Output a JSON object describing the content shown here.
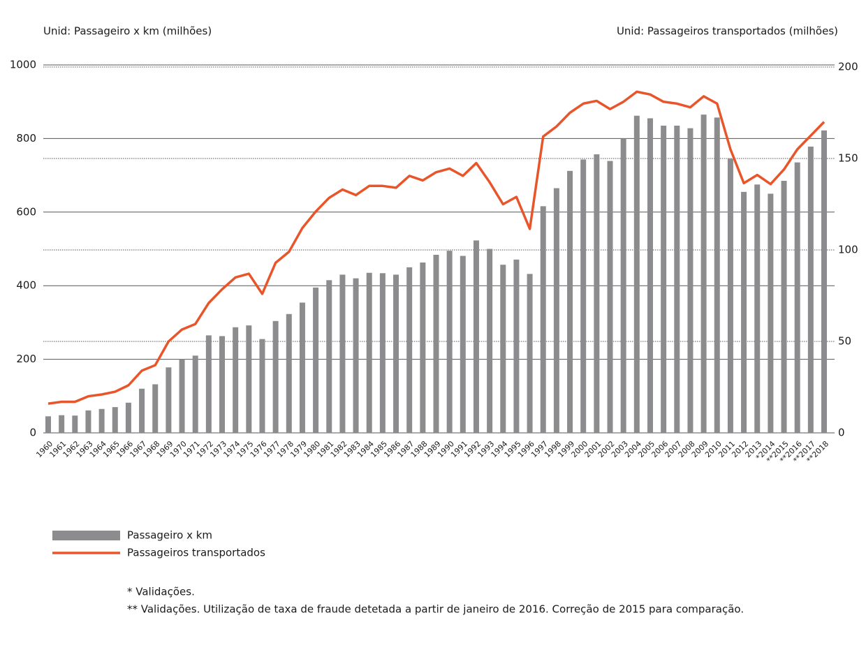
{
  "chart_data": {
    "type": "bar_line",
    "y_label": "Unid:  Passageiro x km (milhões)",
    "y2_label": "Unid: Passageiros transportados (milhões)",
    "categories": [
      "1960",
      "1961",
      "1962",
      "1963",
      "1964",
      "1965",
      "1966",
      "1967",
      "1968",
      "1969",
      "1970",
      "1971",
      "1972",
      "1973",
      "1974",
      "1975",
      "1976",
      "1977",
      "1978",
      "1979",
      "1980",
      "1981",
      "1982",
      "1983",
      "1984",
      "1985",
      "1986",
      "1987",
      "1988",
      "1989",
      "1990",
      "1991",
      "1992",
      "1993",
      "1994",
      "1995",
      "1996",
      "1997",
      "1998",
      "1999",
      "2000",
      "2001",
      "2002",
      "2003",
      "2004",
      "2005",
      "2006",
      "2007",
      "2008",
      "2009",
      "2010",
      "2011",
      "2012",
      "2013",
      "*2014",
      "**2015",
      "**2016",
      "**2017",
      "**2018"
    ],
    "series": [
      {
        "name": "Passageiro x km",
        "color": "#8c8c8e",
        "type": "bar",
        "axis": "y",
        "values": [
          45,
          48,
          47,
          61,
          65,
          70,
          82,
          120,
          132,
          178,
          200,
          210,
          265,
          263,
          287,
          292,
          255,
          304,
          323,
          354,
          395,
          415,
          430,
          420,
          435,
          434,
          430,
          450,
          463,
          484,
          495,
          481,
          523,
          500,
          457,
          471,
          432,
          616,
          665,
          712,
          743,
          757,
          739,
          800,
          862,
          855,
          835,
          835,
          828,
          865,
          857,
          745,
          655,
          675,
          650,
          685,
          735,
          778,
          822
        ]
      },
      {
        "name": "Passageiros transportados",
        "color": "#e8552a",
        "type": "line",
        "axis": "y2",
        "values": [
          16,
          17,
          17,
          20,
          21,
          22.5,
          26,
          34,
          37,
          50,
          56.5,
          59.5,
          71,
          78.5,
          85,
          87,
          76,
          93,
          99,
          112,
          121,
          128.5,
          133,
          130,
          135,
          135,
          134,
          140.5,
          138,
          142.5,
          144.5,
          140.5,
          147.5,
          137,
          125,
          129,
          111.5,
          162,
          167.5,
          175,
          180,
          181.5,
          177,
          181,
          186.5,
          185,
          181,
          180,
          178,
          184,
          180,
          155,
          136.5,
          141,
          136,
          144,
          155,
          162.5,
          170
        ]
      }
    ],
    "ylim": [
      0,
      1000
    ],
    "yticks": [
      0,
      200,
      400,
      600,
      800,
      1000
    ],
    "y2lim": [
      0,
      200
    ],
    "y2ticks": [
      0,
      50,
      100,
      150,
      200
    ],
    "notes": [
      "* Validações.",
      "** Validações. Utilização de taxa de fraude detetada a partir de janeiro de 2016. Correção de 2015 para comparação."
    ]
  }
}
